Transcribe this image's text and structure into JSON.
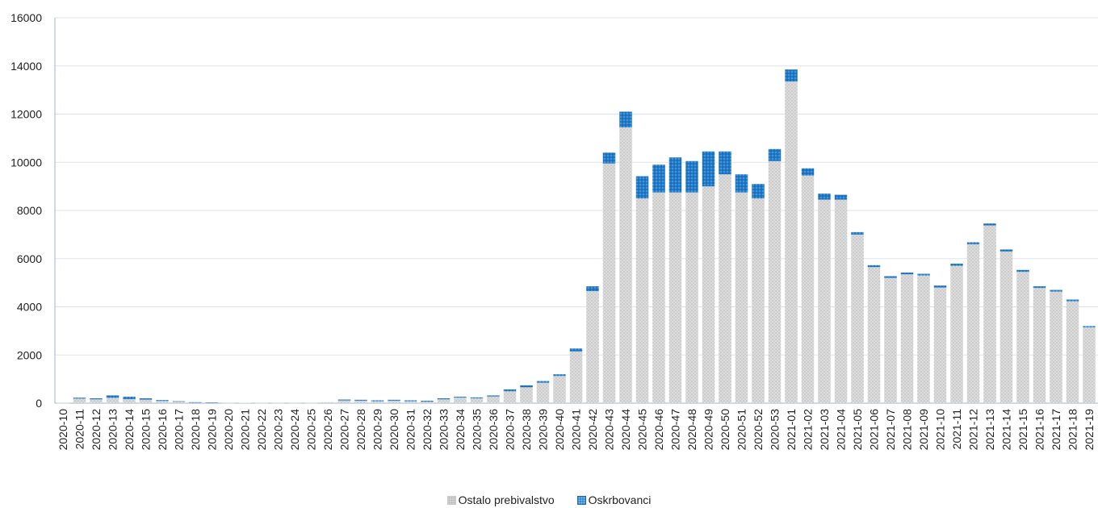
{
  "chart_data": {
    "type": "bar",
    "stacked": true,
    "title": "",
    "xlabel": "",
    "ylabel": "",
    "ylim": [
      0,
      16000
    ],
    "yticks": [
      0,
      2000,
      4000,
      6000,
      8000,
      10000,
      12000,
      14000,
      16000
    ],
    "grid": true,
    "legend_position": "bottom-center",
    "categories": [
      "2020-10",
      "2020-11",
      "2020-12",
      "2020-13",
      "2020-14",
      "2020-15",
      "2020-16",
      "2020-17",
      "2020-18",
      "2020-19",
      "2020-20",
      "2020-21",
      "2020-22",
      "2020-23",
      "2020-24",
      "2020-25",
      "2020-26",
      "2020-27",
      "2020-28",
      "2020-29",
      "2020-30",
      "2020-31",
      "2020-32",
      "2020-33",
      "2020-34",
      "2020-35",
      "2020-36",
      "2020-37",
      "2020-38",
      "2020-39",
      "2020-40",
      "2020-41",
      "2020-42",
      "2020-43",
      "2020-44",
      "2020-45",
      "2020-46",
      "2020-47",
      "2020-48",
      "2020-49",
      "2020-50",
      "2020-51",
      "2020-52",
      "2020-53",
      "2021-01",
      "2021-02",
      "2021-03",
      "2021-04",
      "2021-05",
      "2021-06",
      "2021-07",
      "2021-08",
      "2021-09",
      "2021-10",
      "2021-11",
      "2021-12",
      "2021-13",
      "2021-14",
      "2021-15",
      "2021-16",
      "2021-17",
      "2021-18",
      "2021-19"
    ],
    "series": [
      {
        "name": "Ostalo prebivalstvo",
        "color": "#d9d9d9",
        "values": [
          10,
          190,
          160,
          220,
          170,
          150,
          90,
          60,
          30,
          20,
          10,
          15,
          10,
          10,
          10,
          10,
          40,
          110,
          100,
          80,
          100,
          80,
          60,
          160,
          230,
          200,
          280,
          490,
          660,
          850,
          1130,
          2150,
          4650,
          9950,
          11450,
          8500,
          8750,
          8750,
          8750,
          9000,
          9500,
          8750,
          8500,
          10050,
          13350,
          9450,
          8450,
          8450,
          7000,
          5650,
          5200,
          5350,
          5300,
          4800,
          5700,
          6600,
          7380,
          6300,
          5450,
          4780,
          4630,
          4230,
          3150
        ]
      },
      {
        "name": "Oskrbovanci",
        "color": "#1f7ac9",
        "values": [
          0,
          40,
          40,
          100,
          100,
          50,
          40,
          20,
          10,
          5,
          0,
          0,
          0,
          0,
          0,
          0,
          0,
          40,
          40,
          40,
          40,
          40,
          40,
          40,
          40,
          40,
          40,
          80,
          80,
          70,
          70,
          120,
          200,
          450,
          650,
          920,
          1150,
          1450,
          1300,
          1450,
          950,
          750,
          600,
          500,
          500,
          300,
          250,
          200,
          100,
          80,
          70,
          70,
          70,
          80,
          90,
          80,
          80,
          80,
          80,
          70,
          70,
          70,
          50
        ]
      }
    ]
  }
}
